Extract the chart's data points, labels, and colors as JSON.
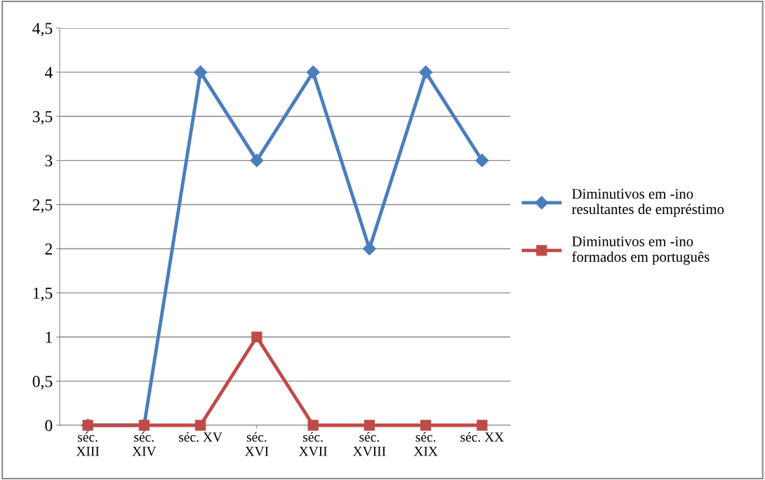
{
  "chart_data": {
    "type": "line",
    "categories": [
      "séc.\nXIII",
      "séc.\nXIV",
      "séc. XV",
      "séc.\nXVI",
      "séc.\nXVII",
      "séc.\nXVIII",
      "séc.\nXIX",
      "séc. XX"
    ],
    "series": [
      {
        "name": "Diminutivos em -ino\nresultantes de empréstimo",
        "color": "#4a7ebb",
        "marker": "diamond",
        "values": [
          0,
          0,
          4,
          3,
          4,
          2,
          4,
          3
        ]
      },
      {
        "name": "Diminutivos em -ino\nformados em português",
        "color": "#be4b48",
        "marker": "square",
        "values": [
          0,
          0,
          0,
          1,
          0,
          0,
          0,
          0
        ]
      }
    ],
    "ylim": [
      0,
      4.5
    ],
    "yticks": [
      0,
      {
        "value": 0.5,
        "label": "0,5"
      },
      1,
      {
        "value": 1.5,
        "label": "1,5"
      },
      2,
      {
        "value": 2.5,
        "label": "2,5"
      },
      3,
      {
        "value": 3.5,
        "label": "3,5"
      },
      4,
      {
        "value": 4.5,
        "label": "4,5"
      }
    ],
    "grid": "y",
    "legend": "right",
    "line_style": "solid"
  }
}
